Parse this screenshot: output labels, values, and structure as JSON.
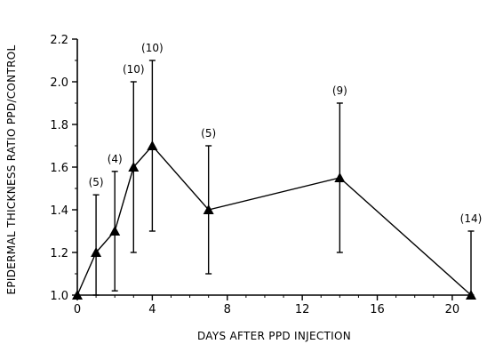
{
  "chart_data": {
    "type": "line",
    "xlabel": "DAYS AFTER PPD INJECTION",
    "ylabel": "EPIDERMAL THICKNESS RATIO  PPD/CONTROL",
    "xlim": [
      0,
      21
    ],
    "ylim": [
      1.0,
      2.2
    ],
    "xticks": [
      0,
      4,
      8,
      12,
      16,
      20
    ],
    "yticks": [
      "1.0",
      "1.2",
      "1.4",
      "1.6",
      "1.8",
      "2.0",
      "2.2"
    ],
    "grid": false,
    "marker": "filled-triangle",
    "series": [
      {
        "x": [
          0,
          1,
          2,
          3,
          4,
          7,
          14,
          21
        ],
        "y": [
          1.0,
          1.2,
          1.3,
          1.6,
          1.7,
          1.4,
          1.55,
          1.0
        ],
        "error_upper": [
          1.0,
          1.47,
          1.58,
          2.0,
          2.1,
          1.7,
          1.9,
          1.3
        ],
        "error_lower": [
          1.0,
          1.0,
          1.02,
          1.2,
          1.3,
          1.1,
          1.2,
          1.0
        ],
        "n_labels": [
          "",
          "(5)",
          "(4)",
          "(10)",
          "(10)",
          "(5)",
          "(9)",
          "(14)"
        ]
      }
    ]
  }
}
